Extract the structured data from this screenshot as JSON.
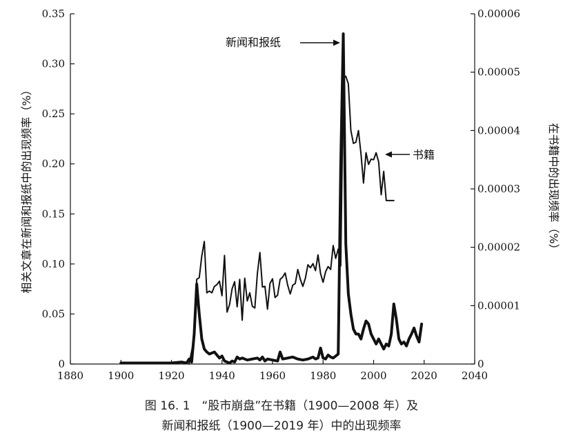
{
  "chart_data": {
    "type": "line",
    "x_axis": {
      "min": 1880,
      "max": 2040,
      "ticks": [
        1880,
        1900,
        1920,
        1940,
        1960,
        1980,
        2000,
        2020,
        2040
      ]
    },
    "y_left": {
      "label": "相关文章在新闻和报纸中的出现频率（%）",
      "min": 0,
      "max": 0.35,
      "ticks": [
        0,
        0.05,
        0.1,
        0.15,
        0.2,
        0.25,
        0.3,
        0.35
      ],
      "tick_labels": [
        "0",
        "0.05",
        "0.10",
        "0.15",
        "0.20",
        "0.25",
        "0.30",
        "0.35"
      ]
    },
    "y_right": {
      "label": "在书籍中的出现频率（%）",
      "min": 0,
      "max": 6e-05,
      "ticks": [
        0,
        1e-05,
        2e-05,
        3e-05,
        4e-05,
        5e-05,
        6e-05
      ],
      "tick_labels": [
        "0",
        "0.00001",
        "0.00002",
        "0.00003",
        "0.00004",
        "0.00005",
        "0.00006"
      ]
    },
    "series": [
      {
        "name": "新闻和报纸",
        "axis": "left",
        "style": "thick",
        "points": [
          [
            1900,
            0.001
          ],
          [
            1905,
            0.001
          ],
          [
            1910,
            0.001
          ],
          [
            1915,
            0.001
          ],
          [
            1920,
            0.001
          ],
          [
            1924,
            0.002
          ],
          [
            1926,
            0.001
          ],
          [
            1927,
            0.005
          ],
          [
            1928,
            0.002
          ],
          [
            1929,
            0.03
          ],
          [
            1930,
            0.08
          ],
          [
            1931,
            0.05
          ],
          [
            1932,
            0.025
          ],
          [
            1933,
            0.015
          ],
          [
            1934,
            0.012
          ],
          [
            1935,
            0.01
          ],
          [
            1936,
            0.011
          ],
          [
            1937,
            0.012
          ],
          [
            1938,
            0.009
          ],
          [
            1939,
            0.006
          ],
          [
            1940,
            0.008
          ],
          [
            1941,
            0.003
          ],
          [
            1942,
            0.002
          ],
          [
            1943,
            0.001
          ],
          [
            1944,
            0.003
          ],
          [
            1945,
            0.002
          ],
          [
            1946,
            0.007
          ],
          [
            1947,
            0.005
          ],
          [
            1948,
            0.006
          ],
          [
            1950,
            0.004
          ],
          [
            1952,
            0.005
          ],
          [
            1954,
            0.006
          ],
          [
            1955,
            0.004
          ],
          [
            1956,
            0.007
          ],
          [
            1957,
            0.003
          ],
          [
            1958,
            0.005
          ],
          [
            1960,
            0.004
          ],
          [
            1962,
            0.003
          ],
          [
            1963,
            0.012
          ],
          [
            1964,
            0.005
          ],
          [
            1966,
            0.006
          ],
          [
            1968,
            0.007
          ],
          [
            1970,
            0.005
          ],
          [
            1972,
            0.004
          ],
          [
            1974,
            0.005
          ],
          [
            1976,
            0.007
          ],
          [
            1977,
            0.005
          ],
          [
            1978,
            0.006
          ],
          [
            1979,
            0.016
          ],
          [
            1980,
            0.006
          ],
          [
            1981,
            0.005
          ],
          [
            1982,
            0.009
          ],
          [
            1983,
            0.007
          ],
          [
            1984,
            0.006
          ],
          [
            1985,
            0.008
          ],
          [
            1986,
            0.01
          ],
          [
            1987,
            0.2
          ],
          [
            1988,
            0.33
          ],
          [
            1989,
            0.12
          ],
          [
            1990,
            0.07
          ],
          [
            1991,
            0.05
          ],
          [
            1992,
            0.035
          ],
          [
            1993,
            0.03
          ],
          [
            1994,
            0.03
          ],
          [
            1995,
            0.025
          ],
          [
            1996,
            0.035
          ],
          [
            1997,
            0.043
          ],
          [
            1998,
            0.04
          ],
          [
            1999,
            0.03
          ],
          [
            2000,
            0.025
          ],
          [
            2001,
            0.02
          ],
          [
            2002,
            0.025
          ],
          [
            2003,
            0.02
          ],
          [
            2004,
            0.015
          ],
          [
            2005,
            0.02
          ],
          [
            2006,
            0.018
          ],
          [
            2007,
            0.03
          ],
          [
            2008,
            0.06
          ],
          [
            2009,
            0.045
          ],
          [
            2010,
            0.025
          ],
          [
            2011,
            0.02
          ],
          [
            2012,
            0.022
          ],
          [
            2013,
            0.018
          ],
          [
            2014,
            0.025
          ],
          [
            2015,
            0.03
          ],
          [
            2016,
            0.036
          ],
          [
            2017,
            0.028
          ],
          [
            2018,
            0.022
          ],
          [
            2019,
            0.04
          ]
        ]
      },
      {
        "name": "书籍",
        "axis": "right",
        "style": "thin",
        "points": [
          [
            1927,
            0
          ],
          [
            1929,
            4.5e-06
          ],
          [
            1930,
            1.45e-05
          ],
          [
            1931,
            1.48e-05
          ],
          [
            1932,
            1.85e-05
          ],
          [
            1933,
            2.1e-05
          ],
          [
            1934,
            1.22e-05
          ],
          [
            1935,
            1.25e-05
          ],
          [
            1936,
            1.22e-05
          ],
          [
            1937,
            1.33e-05
          ],
          [
            1938,
            1.36e-05
          ],
          [
            1939,
            1.42e-05
          ],
          [
            1940,
            1.17e-05
          ],
          [
            1941,
            1.86e-05
          ],
          [
            1942,
            8.9e-06
          ],
          [
            1943,
            1.02e-05
          ],
          [
            1944,
            1.29e-05
          ],
          [
            1945,
            1.41e-05
          ],
          [
            1946,
            9.8e-06
          ],
          [
            1947,
            1.45e-05
          ],
          [
            1948,
            7.5e-06
          ],
          [
            1949,
            1.47e-05
          ],
          [
            1950,
            1.08e-05
          ],
          [
            1951,
            1.22e-05
          ],
          [
            1952,
            9.9e-06
          ],
          [
            1953,
            9.6e-06
          ],
          [
            1954,
            1.55e-05
          ],
          [
            1955,
            1.91e-05
          ],
          [
            1956,
            1.32e-05
          ],
          [
            1957,
            1.33e-05
          ],
          [
            1958,
            9.4e-06
          ],
          [
            1959,
            1.38e-05
          ],
          [
            1960,
            1.46e-05
          ],
          [
            1961,
            1.14e-05
          ],
          [
            1962,
            1.18e-05
          ],
          [
            1963,
            1.45e-05
          ],
          [
            1964,
            1.49e-05
          ],
          [
            1965,
            1.56e-05
          ],
          [
            1966,
            1.35e-05
          ],
          [
            1967,
            1.2e-05
          ],
          [
            1968,
            1.35e-05
          ],
          [
            1969,
            1.38e-05
          ],
          [
            1970,
            1.62e-05
          ],
          [
            1971,
            1.45e-05
          ],
          [
            1972,
            1.33e-05
          ],
          [
            1973,
            1.47e-05
          ],
          [
            1974,
            1.7e-05
          ],
          [
            1975,
            1.65e-05
          ],
          [
            1976,
            1.72e-05
          ],
          [
            1977,
            1.6e-05
          ],
          [
            1978,
            1.87e-05
          ],
          [
            1979,
            1.55e-05
          ],
          [
            1980,
            1.4e-05
          ],
          [
            1981,
            1.58e-05
          ],
          [
            1982,
            1.67e-05
          ],
          [
            1983,
            1.62e-05
          ],
          [
            1984,
            2.03e-05
          ],
          [
            1985,
            1.81e-05
          ],
          [
            1986,
            1.97e-05
          ],
          [
            1987,
            1.68e-05
          ],
          [
            1988,
            4.9e-05
          ],
          [
            1989,
            4.93e-05
          ],
          [
            1990,
            4.8e-05
          ],
          [
            1991,
            4e-05
          ],
          [
            1992,
            3.78e-05
          ],
          [
            1993,
            3.8e-05
          ],
          [
            1994,
            4e-05
          ],
          [
            1995,
            3.6e-05
          ],
          [
            1996,
            3.1e-05
          ],
          [
            1997,
            3.62e-05
          ],
          [
            1998,
            3.42e-05
          ],
          [
            1999,
            3.51e-05
          ],
          [
            2000,
            3.5e-05
          ],
          [
            2001,
            3.62e-05
          ],
          [
            2002,
            3.46e-05
          ],
          [
            2003,
            2.9e-05
          ],
          [
            2004,
            3.3e-05
          ],
          [
            2005,
            2.8e-05
          ],
          [
            2006,
            2.8e-05
          ],
          [
            2007,
            2.8e-05
          ],
          [
            2008,
            2.8e-05
          ]
        ]
      }
    ],
    "annotations": [
      {
        "text": "新闻和报纸",
        "series": "新闻和报纸"
      },
      {
        "text": "书籍",
        "series": "书籍"
      }
    ],
    "grid": false
  },
  "caption": {
    "line1": "图 16. 1　“股市崩盘”在书籍（1900—2008 年）及",
    "line2": "新闻和报纸（1900—2019 年）中的出现频率"
  }
}
